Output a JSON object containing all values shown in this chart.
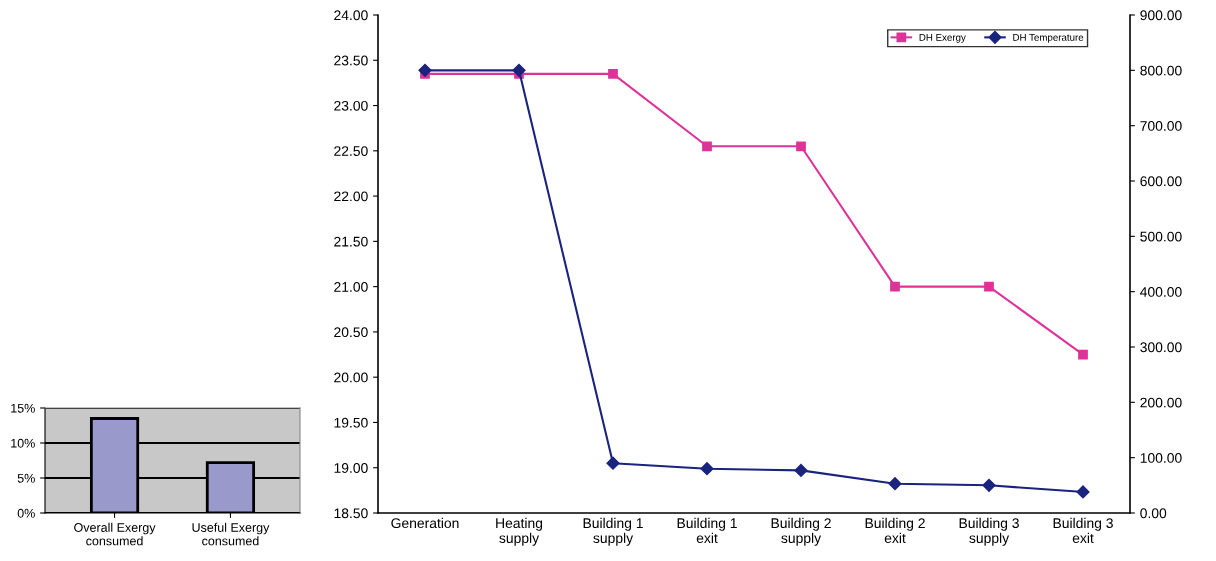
{
  "chart_data": [
    {
      "type": "bar",
      "categories": [
        "Overall Exergy\nconsumed",
        "Useful Exergy\nconsumed"
      ],
      "values": [
        13.5,
        7.2
      ],
      "color": "#9999cc",
      "ylim": [
        0,
        15
      ],
      "yticks": [
        {
          "value": 0,
          "label": "0%"
        },
        {
          "value": 5,
          "label": "5%"
        },
        {
          "value": 10,
          "label": "10%"
        },
        {
          "value": 15,
          "label": "15%"
        }
      ],
      "grid": "y"
    },
    {
      "type": "line",
      "categories": [
        "Generation",
        "Heating\nsupply",
        "Building 1\nsupply",
        "Building 1\nexit",
        "Building 2\nsupply",
        "Building 2\nexit",
        "Building 3\nsupply",
        "Building 3\nexit"
      ],
      "series": [
        {
          "name": "DH Exergy",
          "color": "#dd3399",
          "marker": "square",
          "values": [
            23.35,
            23.35,
            23.35,
            22.55,
            22.55,
            21.0,
            21.0,
            20.25
          ]
        },
        {
          "name": "DH Temperature",
          "color": "#1a237e",
          "marker": "diamond",
          "axis": "y2",
          "values": [
            800,
            800,
            90,
            80,
            77,
            53,
            50,
            38
          ]
        }
      ],
      "ylim": [
        18.5,
        24
      ],
      "yticks": [
        {
          "value": 18.5,
          "label": "18.50"
        },
        {
          "value": 19,
          "label": "19.00"
        },
        {
          "value": 19.5,
          "label": "19.50"
        },
        {
          "value": 20,
          "label": "20.00"
        },
        {
          "value": 20.5,
          "label": "20.50"
        },
        {
          "value": 21,
          "label": "21.00"
        },
        {
          "value": 21.5,
          "label": "21.50"
        },
        {
          "value": 22,
          "label": "22.00"
        },
        {
          "value": 22.5,
          "label": "22.50"
        },
        {
          "value": 23,
          "label": "23.00"
        },
        {
          "value": 23.5,
          "label": "23.50"
        },
        {
          "value": 24,
          "label": "24.00"
        }
      ],
      "y2lim": [
        0,
        900
      ],
      "y2ticks": [
        {
          "value": 0,
          "label": "0.00"
        },
        {
          "value": 100,
          "label": "100.00"
        },
        {
          "value": 200,
          "label": "200.00"
        },
        {
          "value": 300,
          "label": "300.00"
        },
        {
          "value": 400,
          "label": "400.00"
        },
        {
          "value": 500,
          "label": "500.00"
        },
        {
          "value": 600,
          "label": "600.00"
        },
        {
          "value": 700,
          "label": "700.00"
        },
        {
          "value": 800,
          "label": "800.00"
        },
        {
          "value": 900,
          "label": "900.00"
        }
      ],
      "legend": "top right"
    }
  ]
}
